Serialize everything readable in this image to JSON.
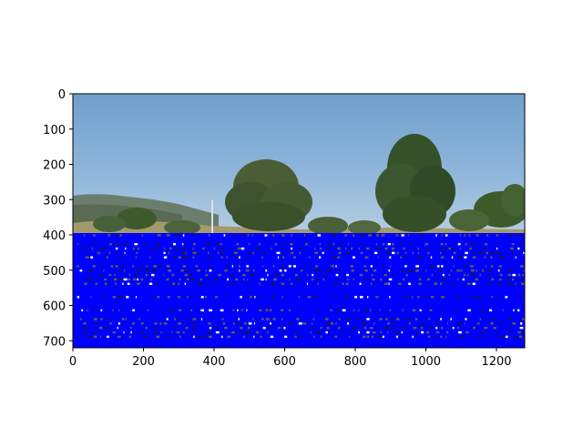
{
  "figure": {
    "type": "image-plot",
    "xlim": [
      0,
      1280
    ],
    "ylim": [
      720,
      0
    ],
    "x_ticks": [
      "0",
      "200",
      "400",
      "600",
      "800",
      "1000",
      "1200"
    ],
    "y_ticks": [
      "0",
      "100",
      "200",
      "300",
      "400",
      "500",
      "600",
      "700"
    ],
    "overlay_color": "#0000ff",
    "overlay_region_y": [
      395,
      720
    ],
    "sky_color": "#7aa8d3",
    "tree_color": "#3d5a2a"
  }
}
